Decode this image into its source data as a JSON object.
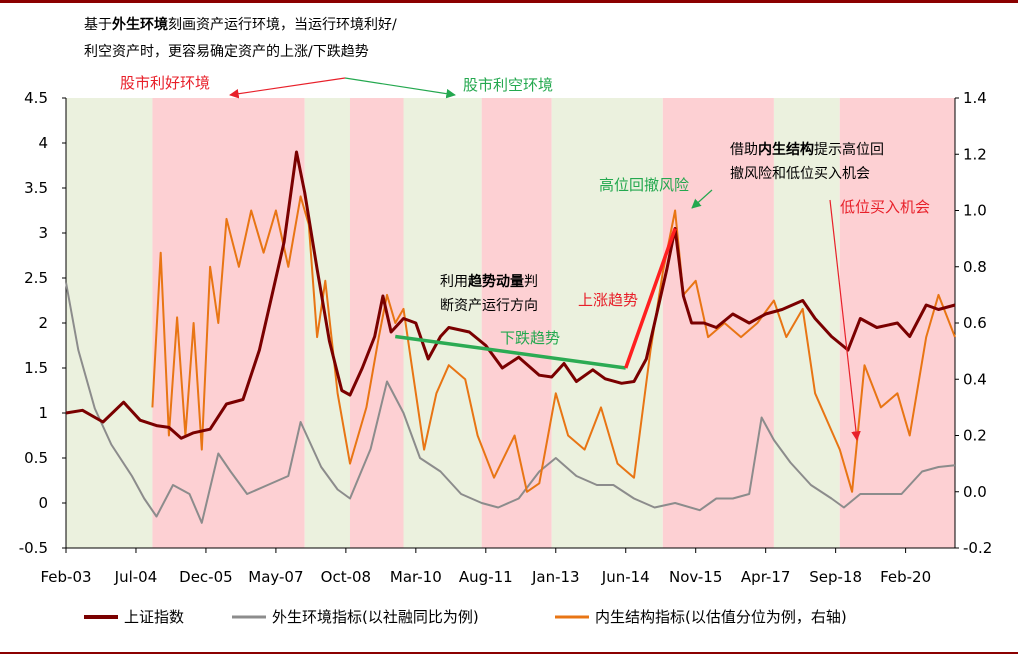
{
  "chart_data": {
    "type": "line",
    "title": "",
    "x_tick_labels": [
      "Feb-03",
      "Jul-04",
      "Dec-05",
      "May-07",
      "Oct-08",
      "Mar-10",
      "Aug-11",
      "Jan-13",
      "Jun-14",
      "Nov-15",
      "Apr-17",
      "Sep-18",
      "Feb-20"
    ],
    "x_range": [
      "2003-02",
      "2021-02"
    ],
    "y_left": {
      "ylim": [
        -0.5,
        4.5
      ],
      "ticks": [
        "-0.5",
        "0",
        "0.5",
        "1",
        "1.5",
        "2",
        "2.5",
        "3",
        "3.5",
        "4",
        "4.5"
      ]
    },
    "y_right": {
      "ylim": [
        -0.2,
        1.4
      ],
      "ticks": [
        "-0.2",
        "0.0",
        "0.2",
        "0.4",
        "0.6",
        "0.8",
        "1.0",
        "1.2",
        "1.4"
      ]
    },
    "grid": false,
    "legend_position": "bottom",
    "background_regions": [
      {
        "start": "2003-02",
        "end": "2004-11",
        "state": "利空"
      },
      {
        "start": "2004-11",
        "end": "2007-12",
        "state": "利好"
      },
      {
        "start": "2007-12",
        "end": "2008-11",
        "state": "利空"
      },
      {
        "start": "2008-11",
        "end": "2009-12",
        "state": "利好"
      },
      {
        "start": "2009-12",
        "end": "2011-07",
        "state": "利空"
      },
      {
        "start": "2011-07",
        "end": "2012-12",
        "state": "利好"
      },
      {
        "start": "2012-12",
        "end": "2015-03",
        "state": "利空"
      },
      {
        "start": "2015-03",
        "end": "2017-06",
        "state": "利好"
      },
      {
        "start": "2017-06",
        "end": "2018-10",
        "state": "利空"
      },
      {
        "start": "2018-10",
        "end": "2021-02",
        "state": "利好"
      }
    ],
    "region_colors": {
      "利好": "#fdd0d3",
      "利空": "#ebf1de"
    },
    "series": [
      {
        "name": "上证指数",
        "axis": "left",
        "color": "#7a0000",
        "points": [
          [
            "2003-02",
            1.0
          ],
          [
            "2003-06",
            1.03
          ],
          [
            "2003-11",
            0.9
          ],
          [
            "2004-04",
            1.12
          ],
          [
            "2004-08",
            0.92
          ],
          [
            "2004-12",
            0.86
          ],
          [
            "2005-03",
            0.84
          ],
          [
            "2005-06",
            0.72
          ],
          [
            "2005-09",
            0.78
          ],
          [
            "2006-01",
            0.82
          ],
          [
            "2006-05",
            1.1
          ],
          [
            "2006-09",
            1.15
          ],
          [
            "2007-01",
            1.7
          ],
          [
            "2007-04",
            2.3
          ],
          [
            "2007-07",
            2.9
          ],
          [
            "2007-10",
            3.9
          ],
          [
            "2007-12",
            3.45
          ],
          [
            "2008-03",
            2.6
          ],
          [
            "2008-06",
            1.8
          ],
          [
            "2008-09",
            1.25
          ],
          [
            "2008-11",
            1.2
          ],
          [
            "2009-02",
            1.5
          ],
          [
            "2009-05",
            1.85
          ],
          [
            "2009-07",
            2.3
          ],
          [
            "2009-09",
            1.9
          ],
          [
            "2009-12",
            2.05
          ],
          [
            "2010-03",
            2.0
          ],
          [
            "2010-06",
            1.6
          ],
          [
            "2010-09",
            1.85
          ],
          [
            "2010-11",
            1.95
          ],
          [
            "2011-04",
            1.9
          ],
          [
            "2011-08",
            1.75
          ],
          [
            "2011-12",
            1.5
          ],
          [
            "2012-04",
            1.62
          ],
          [
            "2012-09",
            1.42
          ],
          [
            "2012-12",
            1.4
          ],
          [
            "2013-03",
            1.55
          ],
          [
            "2013-06",
            1.35
          ],
          [
            "2013-10",
            1.48
          ],
          [
            "2014-01",
            1.38
          ],
          [
            "2014-05",
            1.33
          ],
          [
            "2014-08",
            1.35
          ],
          [
            "2014-11",
            1.6
          ],
          [
            "2015-01",
            2.0
          ],
          [
            "2015-04",
            2.6
          ],
          [
            "2015-06",
            3.05
          ],
          [
            "2015-08",
            2.3
          ],
          [
            "2015-10",
            2.0
          ],
          [
            "2016-01",
            2.0
          ],
          [
            "2016-04",
            1.95
          ],
          [
            "2016-08",
            2.1
          ],
          [
            "2016-12",
            2.0
          ],
          [
            "2017-04",
            2.1
          ],
          [
            "2017-08",
            2.15
          ],
          [
            "2018-01",
            2.25
          ],
          [
            "2018-04",
            2.05
          ],
          [
            "2018-08",
            1.85
          ],
          [
            "2018-12",
            1.7
          ],
          [
            "2019-03",
            2.05
          ],
          [
            "2019-07",
            1.95
          ],
          [
            "2019-12",
            2.0
          ],
          [
            "2020-03",
            1.85
          ],
          [
            "2020-07",
            2.2
          ],
          [
            "2020-10",
            2.15
          ],
          [
            "2021-02",
            2.2
          ]
        ]
      },
      {
        "name": "外生环境指标(以社融同比为例)",
        "axis": "left",
        "color": "#8c8c8c",
        "points": [
          [
            "2003-02",
            2.45
          ],
          [
            "2003-05",
            1.7
          ],
          [
            "2003-09",
            1.05
          ],
          [
            "2004-01",
            0.65
          ],
          [
            "2004-06",
            0.3
          ],
          [
            "2004-09",
            0.05
          ],
          [
            "2004-12",
            -0.15
          ],
          [
            "2005-04",
            0.2
          ],
          [
            "2005-08",
            0.1
          ],
          [
            "2005-11",
            -0.22
          ],
          [
            "2006-03",
            0.55
          ],
          [
            "2006-06",
            0.35
          ],
          [
            "2006-10",
            0.1
          ],
          [
            "2007-03",
            0.2
          ],
          [
            "2007-08",
            0.3
          ],
          [
            "2007-11",
            0.9
          ],
          [
            "2008-04",
            0.4
          ],
          [
            "2008-08",
            0.15
          ],
          [
            "2008-11",
            0.05
          ],
          [
            "2009-04",
            0.6
          ],
          [
            "2009-08",
            1.35
          ],
          [
            "2009-12",
            1.0
          ],
          [
            "2010-04",
            0.5
          ],
          [
            "2010-09",
            0.35
          ],
          [
            "2011-02",
            0.1
          ],
          [
            "2011-07",
            0.0
          ],
          [
            "2011-11",
            -0.05
          ],
          [
            "2012-04",
            0.05
          ],
          [
            "2012-09",
            0.35
          ],
          [
            "2013-01",
            0.5
          ],
          [
            "2013-06",
            0.3
          ],
          [
            "2013-11",
            0.2
          ],
          [
            "2014-03",
            0.2
          ],
          [
            "2014-08",
            0.05
          ],
          [
            "2015-01",
            -0.05
          ],
          [
            "2015-06",
            0.0
          ],
          [
            "2015-12",
            -0.08
          ],
          [
            "2016-04",
            0.05
          ],
          [
            "2016-08",
            0.05
          ],
          [
            "2016-12",
            0.1
          ],
          [
            "2017-03",
            0.95
          ],
          [
            "2017-06",
            0.7
          ],
          [
            "2017-10",
            0.45
          ],
          [
            "2018-03",
            0.2
          ],
          [
            "2018-08",
            0.05
          ],
          [
            "2018-11",
            -0.05
          ],
          [
            "2019-03",
            0.1
          ],
          [
            "2019-08",
            0.1
          ],
          [
            "2020-01",
            0.1
          ],
          [
            "2020-06",
            0.35
          ],
          [
            "2020-10",
            0.4
          ],
          [
            "2021-02",
            0.42
          ]
        ]
      },
      {
        "name": "内生结构指标(以估值分位为例，右轴)",
        "axis": "right",
        "color": "#e87514",
        "points": [
          [
            "2004-11",
            0.3
          ],
          [
            "2005-01",
            0.85
          ],
          [
            "2005-03",
            0.2
          ],
          [
            "2005-05",
            0.62
          ],
          [
            "2005-07",
            0.2
          ],
          [
            "2005-09",
            0.6
          ],
          [
            "2005-11",
            0.15
          ],
          [
            "2006-01",
            0.8
          ],
          [
            "2006-03",
            0.6
          ],
          [
            "2006-05",
            0.97
          ],
          [
            "2006-08",
            0.8
          ],
          [
            "2006-11",
            1.0
          ],
          [
            "2007-02",
            0.85
          ],
          [
            "2007-05",
            1.0
          ],
          [
            "2007-08",
            0.8
          ],
          [
            "2007-11",
            1.05
          ],
          [
            "2008-01",
            0.95
          ],
          [
            "2008-03",
            0.55
          ],
          [
            "2008-05",
            0.75
          ],
          [
            "2008-08",
            0.35
          ],
          [
            "2008-11",
            0.1
          ],
          [
            "2009-03",
            0.3
          ],
          [
            "2009-06",
            0.55
          ],
          [
            "2009-08",
            0.7
          ],
          [
            "2009-10",
            0.6
          ],
          [
            "2009-12",
            0.65
          ],
          [
            "2010-02",
            0.45
          ],
          [
            "2010-05",
            0.15
          ],
          [
            "2010-08",
            0.35
          ],
          [
            "2010-11",
            0.45
          ],
          [
            "2011-03",
            0.4
          ],
          [
            "2011-06",
            0.2
          ],
          [
            "2011-10",
            0.05
          ],
          [
            "2012-03",
            0.2
          ],
          [
            "2012-06",
            0.0
          ],
          [
            "2012-09",
            0.03
          ],
          [
            "2013-01",
            0.35
          ],
          [
            "2013-04",
            0.2
          ],
          [
            "2013-08",
            0.15
          ],
          [
            "2013-12",
            0.3
          ],
          [
            "2014-04",
            0.1
          ],
          [
            "2014-08",
            0.05
          ],
          [
            "2014-12",
            0.5
          ],
          [
            "2015-03",
            0.78
          ],
          [
            "2015-06",
            1.0
          ],
          [
            "2015-08",
            0.7
          ],
          [
            "2015-11",
            0.75
          ],
          [
            "2016-02",
            0.55
          ],
          [
            "2016-06",
            0.6
          ],
          [
            "2016-10",
            0.55
          ],
          [
            "2017-02",
            0.6
          ],
          [
            "2017-06",
            0.68
          ],
          [
            "2017-09",
            0.55
          ],
          [
            "2018-01",
            0.65
          ],
          [
            "2018-04",
            0.35
          ],
          [
            "2018-07",
            0.25
          ],
          [
            "2018-10",
            0.15
          ],
          [
            "2019-01",
            0.0
          ],
          [
            "2019-04",
            0.45
          ],
          [
            "2019-08",
            0.3
          ],
          [
            "2019-12",
            0.35
          ],
          [
            "2020-03",
            0.2
          ],
          [
            "2020-07",
            0.55
          ],
          [
            "2020-10",
            0.7
          ],
          [
            "2021-02",
            0.55
          ]
        ]
      }
    ],
    "overlay_lines": [
      {
        "name": "下跌趋势线",
        "color": "#2bab53",
        "from": [
          "2009-10",
          1.85
        ],
        "to": [
          "2014-06",
          1.5
        ]
      },
      {
        "name": "上涨趋势线",
        "color": "#ff2020",
        "from": [
          "2014-06",
          1.5
        ],
        "to": [
          "2015-06",
          3.05
        ]
      }
    ]
  },
  "annotations": {
    "exogenous_note": {
      "line1_pre": "基于",
      "line1_bold": "外生环境",
      "line1_post": "刻画资产运行环境，当运行环境利好/",
      "line2": "利空资产时，更容易确定资产的上涨/下跌趋势"
    },
    "bull_env": "股市利好环境",
    "bear_env": "股市利空环境",
    "momentum_note": {
      "line1_pre": "利用",
      "line1_bold": "趋势动量",
      "line1_post": "判",
      "line2": "断资产运行方向"
    },
    "down_trend": "下跌趋势",
    "up_trend": "上涨趋势",
    "pullback_risk": "高位回撤风险",
    "structure_note": {
      "line1_pre": "借助",
      "line1_bold": "内生结构",
      "line1_post": "提示高位回",
      "line2": "撤风险和低位买入机会"
    },
    "buy_opportunity": "低位买入机会"
  },
  "colors": {
    "red_text": "#e8202a",
    "green_text": "#24a84f",
    "axis": "#000000"
  }
}
